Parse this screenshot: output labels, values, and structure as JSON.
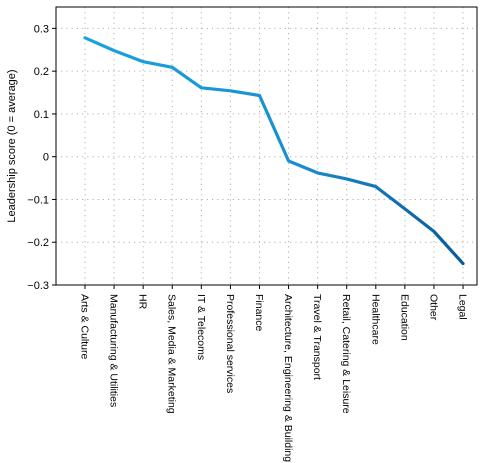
{
  "chart_data": {
    "type": "line",
    "title": "",
    "xlabel": "",
    "ylabel": "Leadership score (0 = average)",
    "ylim": [
      -0.3,
      0.35
    ],
    "yticks": [
      -0.3,
      -0.2,
      -0.1,
      0,
      0.1,
      0.2,
      0.3
    ],
    "ytick_labels": [
      "−0.3",
      "−0.2",
      "−0.1",
      "0",
      "0.1",
      "0.2",
      "0.3"
    ],
    "grid": true,
    "categories": [
      "Arts & Culture",
      "Manufacturing & Utilities",
      "HR",
      "Sales, Media & Marketing",
      "IT & Telecoms",
      "Professional services",
      "Finance",
      "Architecture, Engineering & Building",
      "Travel & Transport",
      "Retail, Catering & Leisure",
      "Healthcare",
      "Education",
      "Other",
      "Legal"
    ],
    "series": [
      {
        "values": [
          0.278,
          0.248,
          0.222,
          0.209,
          0.161,
          0.154,
          0.143,
          -0.01,
          -0.038,
          -0.052,
          -0.07,
          -0.122,
          -0.175,
          -0.25
        ]
      }
    ],
    "colors": {
      "line_start": "#1aa3e0",
      "line_end": "#0b5a9a",
      "grid": "#b0b0b0",
      "axis": "#000000"
    }
  }
}
